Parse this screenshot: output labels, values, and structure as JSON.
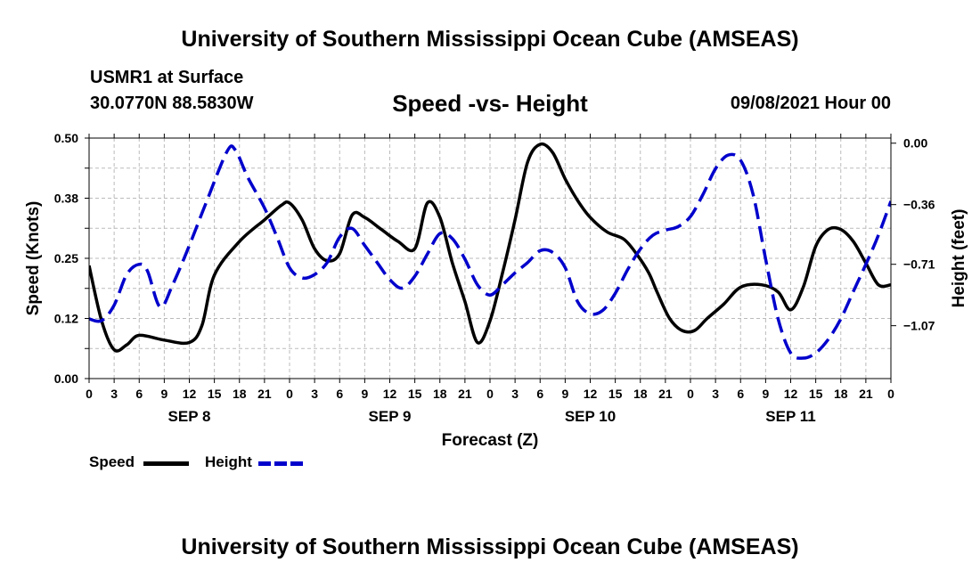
{
  "header": {
    "title_top": "University of Southern Mississippi Ocean Cube (AMSEAS)",
    "station": "USMR1 at Surface",
    "coords": "30.0770N  88.5830W",
    "date": "09/08/2021 Hour 00"
  },
  "footer": {
    "title_bottom": "University of Southern Mississippi Ocean Cube (AMSEAS)"
  },
  "legend": {
    "speed_label": "Speed",
    "height_label": "Height"
  },
  "colors": {
    "speed": "#000000",
    "height": "#0000cc",
    "grid": "#bbbbbb"
  },
  "chart_data": {
    "type": "line",
    "title": "Speed -vs- Height",
    "xlabel": "Forecast (Z)",
    "ylabel_left": "Speed (Knots)",
    "ylabel_right": "Height (feet)",
    "x_unit": "hours since SEP 8 00Z",
    "xlim": [
      0,
      96
    ],
    "ylim_left": [
      0.0,
      0.5
    ],
    "ylim_right": [
      -1.38,
      0.03
    ],
    "left_ticks": [
      {
        "v": 0.0,
        "label": "0.00"
      },
      {
        "v": 0.125,
        "label": "0.12"
      },
      {
        "v": 0.25,
        "label": "0.25"
      },
      {
        "v": 0.375,
        "label": "0.38"
      },
      {
        "v": 0.5,
        "label": "0.50"
      }
    ],
    "right_ticks": [
      {
        "v": 0.0,
        "label": "0.00"
      },
      {
        "v": -0.36,
        "label": "−0.36"
      },
      {
        "v": -0.71,
        "label": "−0.71"
      },
      {
        "v": -1.07,
        "label": "−1.07"
      }
    ],
    "x_ticks": [
      "0",
      "3",
      "6",
      "9",
      "12",
      "15",
      "18",
      "21",
      "0",
      "3",
      "6",
      "9",
      "12",
      "15",
      "18",
      "21",
      "0",
      "3",
      "6",
      "9",
      "12",
      "15",
      "18",
      "21",
      "0",
      "3",
      "6",
      "9",
      "12",
      "15",
      "18",
      "21",
      "0"
    ],
    "day_labels": [
      {
        "x": 12,
        "label": "SEP 8"
      },
      {
        "x": 36,
        "label": "SEP 9"
      },
      {
        "x": 60,
        "label": "SEP 10"
      },
      {
        "x": 84,
        "label": "SEP 11"
      }
    ],
    "series": [
      {
        "name": "Speed",
        "axis": "left",
        "style": "solid",
        "x": [
          0,
          1.5,
          3,
          4.5,
          6,
          9,
          12,
          13.5,
          15,
          18,
          21,
          23,
          24,
          25.5,
          27,
          28.5,
          30,
          31.5,
          33,
          35,
          37,
          39,
          40.5,
          42,
          43.5,
          45,
          46.5,
          48,
          49.5,
          51,
          52.5,
          54,
          55.5,
          57,
          58.5,
          60,
          62,
          64,
          65.5,
          67,
          68,
          69.5,
          71,
          72.5,
          74,
          76,
          78,
          80.5,
          82.5,
          84,
          85.5,
          87,
          88.5,
          90,
          91.5,
          93,
          94.5,
          96
        ],
        "values": [
          0.235,
          0.12,
          0.06,
          0.07,
          0.09,
          0.08,
          0.075,
          0.11,
          0.215,
          0.285,
          0.33,
          0.36,
          0.365,
          0.33,
          0.27,
          0.245,
          0.26,
          0.34,
          0.335,
          0.31,
          0.285,
          0.27,
          0.365,
          0.335,
          0.24,
          0.16,
          0.075,
          0.12,
          0.22,
          0.33,
          0.45,
          0.487,
          0.47,
          0.415,
          0.37,
          0.335,
          0.305,
          0.29,
          0.26,
          0.22,
          0.18,
          0.125,
          0.1,
          0.1,
          0.125,
          0.155,
          0.19,
          0.195,
          0.18,
          0.143,
          0.19,
          0.275,
          0.31,
          0.31,
          0.285,
          0.24,
          0.195,
          0.195
        ]
      },
      {
        "name": "Height",
        "axis": "right",
        "style": "dashed",
        "x": [
          0,
          1.5,
          3,
          4.5,
          6,
          7,
          8.5,
          10,
          12,
          14,
          16.5,
          17.5,
          19,
          21,
          22.5,
          24,
          25.5,
          27,
          28.5,
          30,
          31.5,
          33,
          34.5,
          36,
          37.5,
          39,
          40.5,
          42,
          43.5,
          45,
          46.5,
          48,
          49.5,
          51,
          52.5,
          54,
          55.5,
          57,
          58.5,
          60,
          61.5,
          63,
          64.5,
          66,
          67.5,
          69,
          70.5,
          72,
          73.5,
          75,
          76.5,
          78,
          79.5,
          81,
          82.5,
          84,
          85.5,
          87,
          88.5,
          90,
          91.5,
          93,
          94.5,
          96
        ],
        "values": [
          -1.03,
          -1.04,
          -0.95,
          -0.77,
          -0.71,
          -0.75,
          -0.96,
          -0.83,
          -0.6,
          -0.35,
          -0.05,
          -0.04,
          -0.2,
          -0.38,
          -0.55,
          -0.73,
          -0.79,
          -0.77,
          -0.7,
          -0.55,
          -0.5,
          -0.6,
          -0.7,
          -0.8,
          -0.85,
          -0.78,
          -0.65,
          -0.53,
          -0.56,
          -0.68,
          -0.83,
          -0.89,
          -0.83,
          -0.76,
          -0.7,
          -0.63,
          -0.64,
          -0.73,
          -0.93,
          -1.0,
          -0.98,
          -0.88,
          -0.74,
          -0.62,
          -0.54,
          -0.51,
          -0.49,
          -0.43,
          -0.3,
          -0.15,
          -0.07,
          -0.1,
          -0.3,
          -0.68,
          -1.03,
          -1.23,
          -1.26,
          -1.23,
          -1.15,
          -1.03,
          -0.87,
          -0.71,
          -0.54,
          -0.34
        ]
      }
    ]
  }
}
